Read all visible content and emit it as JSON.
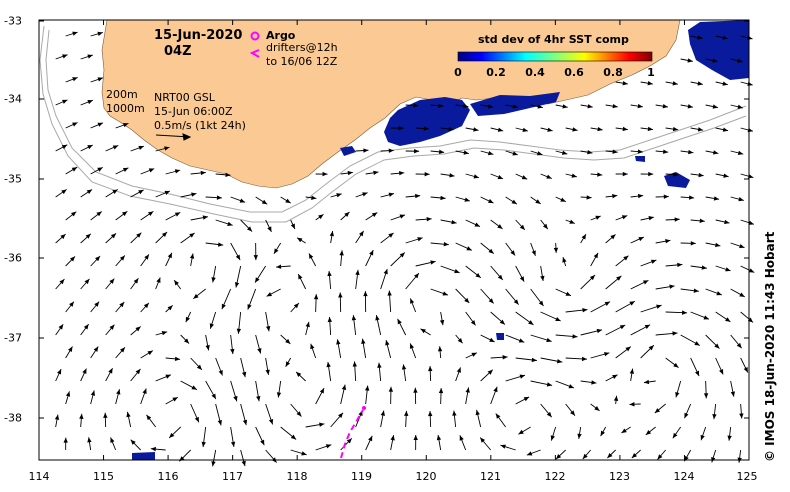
{
  "title": {
    "date": "15-Jun-2020",
    "hour": "04Z"
  },
  "legend": {
    "argo_label": "Argo",
    "drifter_label": "drifters@12h",
    "drifter_range": "to 16/06 12Z",
    "argo_color": "#ff00ff",
    "drifter_color": "#ff00ff"
  },
  "info": {
    "contour_200": "200m",
    "contour_1000": "1000m",
    "product": "NRT00 GSL",
    "product_time": "15-Jun 06:00Z",
    "vector_scale": "0.5m/s (1kt 24h)"
  },
  "colorbar": {
    "title": "std dev of 4hr SST comp",
    "ticks": [
      "0",
      "0.2",
      "0.4",
      "0.6",
      "0.8",
      "1"
    ]
  },
  "axes": {
    "longitude_ticks": [
      "114",
      "115",
      "116",
      "117",
      "118",
      "119",
      "120",
      "121",
      "122",
      "123",
      "124",
      "125"
    ],
    "latitude_ticks": [
      "-33",
      "-34",
      "-35",
      "-36",
      "-37",
      "-38"
    ],
    "lon_range": [
      114,
      125
    ],
    "lat_range": [
      -38.55,
      -33.0
    ]
  },
  "credit": "©  IMOS 18-Jun-2020 11:43 Hobart",
  "colors": {
    "land": "#fbc994",
    "sst_patch": "#0a1a9c",
    "contour": "#a8a8a8",
    "drifter": "#ff00ff"
  }
}
